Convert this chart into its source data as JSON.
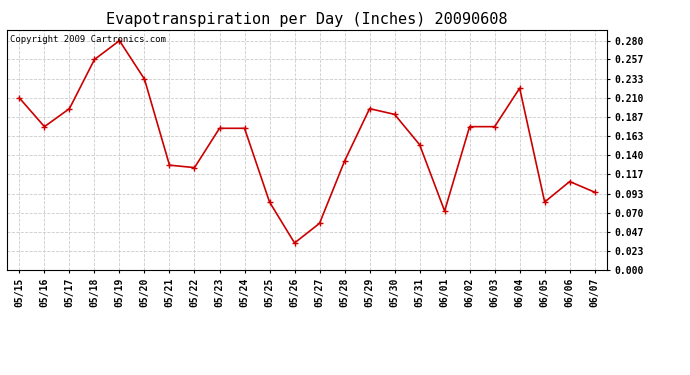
{
  "title": "Evapotranspiration per Day (Inches) 20090608",
  "copyright_text": "Copyright 2009 Cartronics.com",
  "x_labels": [
    "05/15",
    "05/16",
    "05/17",
    "05/18",
    "05/19",
    "05/20",
    "05/21",
    "05/22",
    "05/23",
    "05/24",
    "05/25",
    "05/26",
    "05/27",
    "05/28",
    "05/29",
    "05/30",
    "05/31",
    "06/01",
    "06/02",
    "06/03",
    "06/04",
    "06/05",
    "06/06",
    "06/07"
  ],
  "y_values": [
    0.21,
    0.175,
    0.197,
    0.257,
    0.28,
    0.233,
    0.128,
    0.125,
    0.173,
    0.173,
    0.083,
    0.033,
    0.057,
    0.133,
    0.197,
    0.19,
    0.153,
    0.072,
    0.175,
    0.175,
    0.222,
    0.083,
    0.108,
    0.095
  ],
  "line_color": "#cc0000",
  "marker": "+",
  "marker_size": 5,
  "grid_color": "#cccccc",
  "bg_color": "#ffffff",
  "yticks": [
    0.0,
    0.023,
    0.047,
    0.07,
    0.093,
    0.117,
    0.14,
    0.163,
    0.187,
    0.21,
    0.233,
    0.257,
    0.28
  ],
  "ylim": [
    0.0,
    0.293
  ],
  "title_fontsize": 11,
  "copyright_fontsize": 6.5,
  "tick_fontsize": 7,
  "ytick_fontsize": 7
}
